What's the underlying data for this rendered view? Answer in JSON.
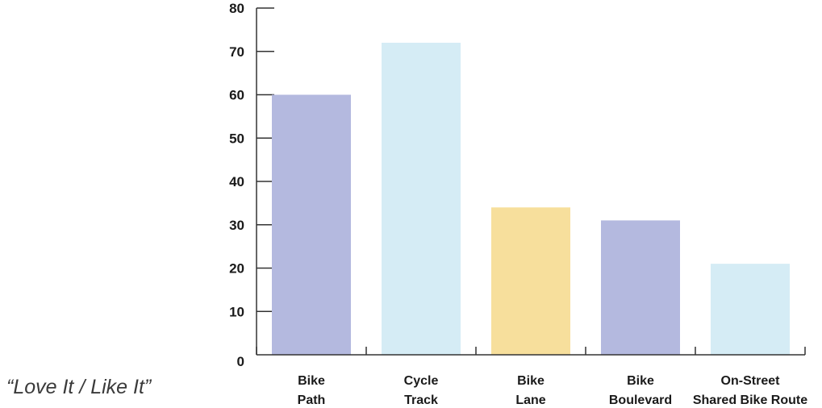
{
  "chart_data": {
    "type": "bar",
    "categories": [
      [
        "Bike",
        "Path"
      ],
      [
        "Cycle",
        "Track"
      ],
      [
        "Bike",
        "Lane"
      ],
      [
        "Bike",
        "Boulevard"
      ],
      [
        "On-Street",
        "Shared Bike Route"
      ]
    ],
    "values": [
      60,
      72,
      34,
      31,
      21
    ],
    "bar_colors": [
      "#b4b9df",
      "#d5ecf5",
      "#f7df9c",
      "#b4b9df",
      "#d5ecf5"
    ],
    "ylim": [
      0,
      80
    ],
    "yticks": [
      0,
      10,
      20,
      30,
      40,
      50,
      60,
      70,
      80
    ],
    "grid": false,
    "axis_color": "#333333",
    "text_color": "#1a1a1a"
  },
  "side_note": "“Love It / Like It”"
}
